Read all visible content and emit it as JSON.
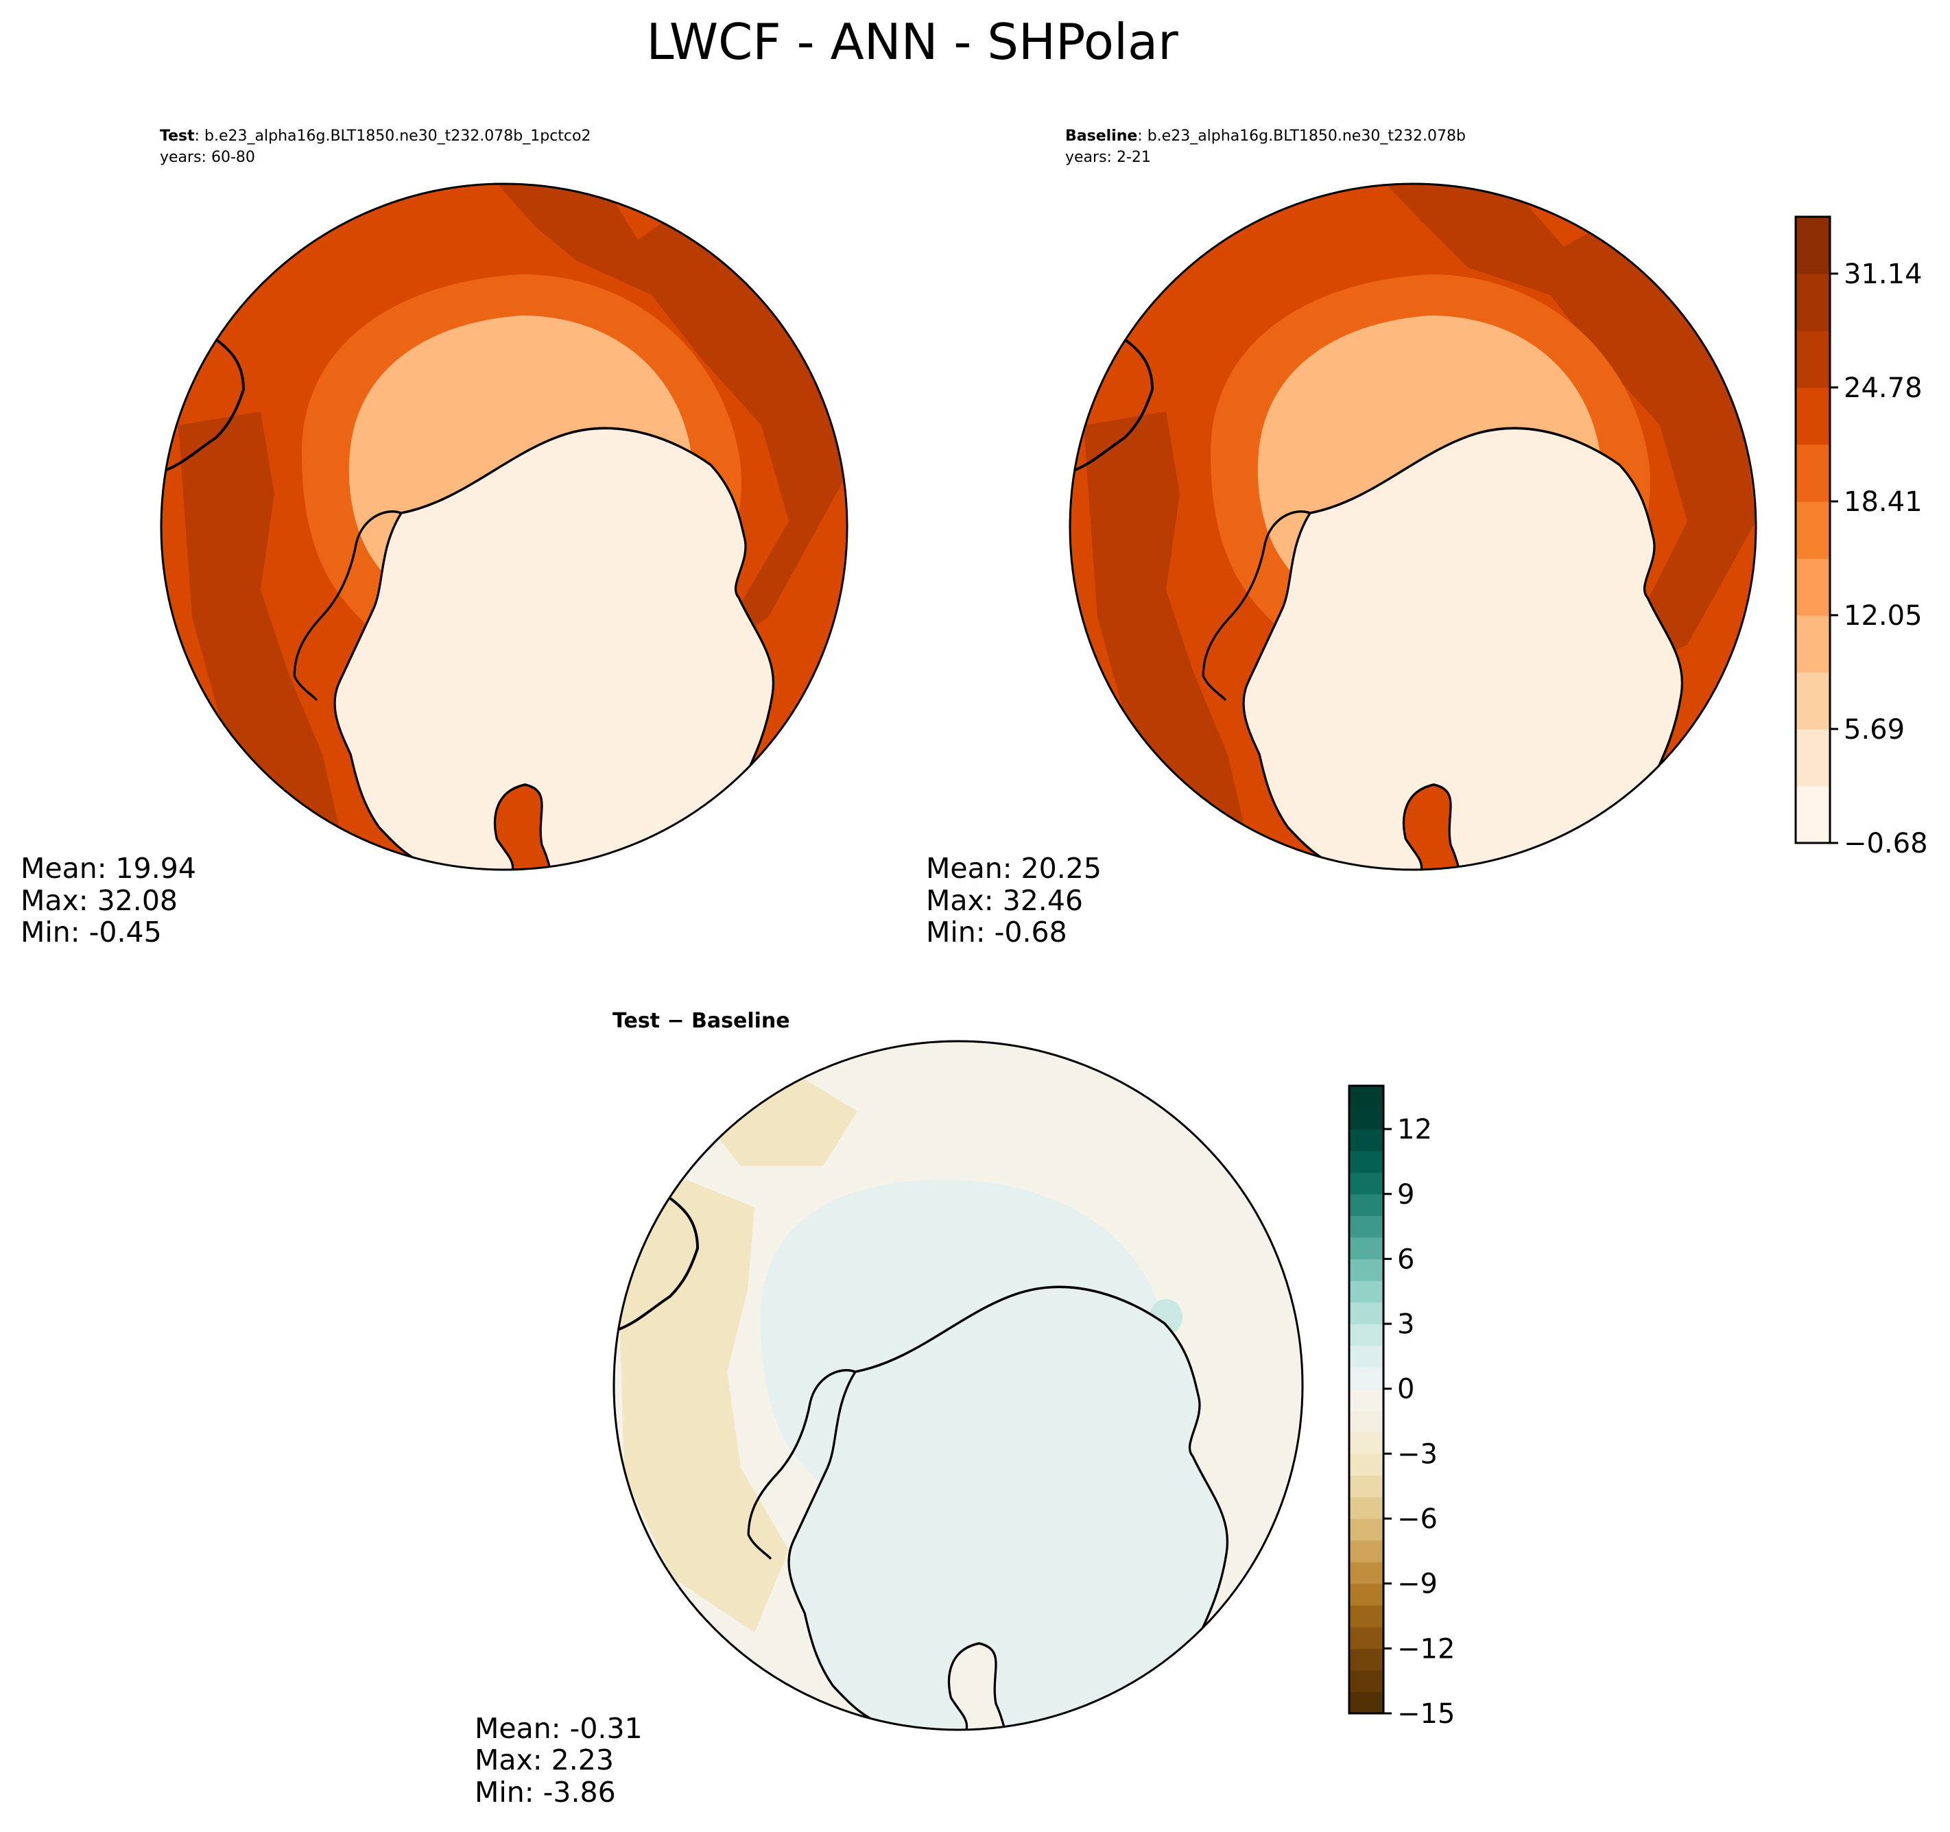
{
  "chart_data": {
    "type": "polar-contour-map",
    "title": "LWCF - ANN - SHPolar",
    "panels": [
      {
        "id": "test",
        "label": "Test",
        "case": ": b.e23_alpha16g.BLT1850.ne30_t232.078b_1pctco2",
        "years": "years: 60-80",
        "stats": {
          "mean": "Mean: 19.94",
          "max": "Max: 32.08",
          "min": "Min: -0.45"
        }
      },
      {
        "id": "baseline",
        "label": "Baseline",
        "case": ": b.e23_alpha16g.BLT1850.ne30_t232.078b",
        "years": "years: 2-21",
        "stats": {
          "mean": "Mean: 20.25",
          "max": "Max: 32.46",
          "min": "Min: -0.68"
        }
      },
      {
        "id": "diff",
        "label": "Test − Baseline",
        "stats": {
          "mean": "Mean: -0.31",
          "max": "Max:  2.23",
          "min": "Min: -3.86"
        }
      }
    ],
    "colorbar_main": {
      "colormap": "Oranges",
      "range": [
        -0.68,
        34.32
      ],
      "levels": [
        -0.68,
        2.5,
        5.69,
        8.87,
        12.05,
        15.23,
        18.41,
        21.6,
        24.78,
        27.96,
        31.14,
        34.32
      ],
      "tick_values": [
        -0.68,
        5.69,
        12.05,
        18.41,
        24.78,
        31.14
      ],
      "tick_labels": [
        "−0.68",
        "5.69",
        "12.05",
        "18.41",
        "24.78",
        "31.14"
      ],
      "colors": [
        "#fff5eb",
        "#fee6ce",
        "#fdd0a2",
        "#fdb97e",
        "#fd9c55",
        "#f8812c",
        "#ec6514",
        "#d94801",
        "#b93d03",
        "#a53603",
        "#8c2d04"
      ]
    },
    "colorbar_diff": {
      "colormap": "BrBG",
      "range": [
        -15,
        14
      ],
      "levels": [
        -15,
        -14,
        -13,
        -12,
        -11,
        -10,
        -9,
        -8,
        -7,
        -6,
        -5,
        -4,
        -3,
        -2,
        -1,
        0,
        1,
        2,
        3,
        4,
        5,
        6,
        7,
        8,
        9,
        10,
        11,
        12,
        13,
        14
      ],
      "tick_values": [
        -15,
        -12,
        -9,
        -6,
        -3,
        0,
        3,
        6,
        9,
        12
      ],
      "tick_labels": [
        "−15",
        "−12",
        "−9",
        "−6",
        "−3",
        "0",
        "3",
        "6",
        "9",
        "12"
      ],
      "colors": [
        "#543005",
        "#643a07",
        "#74450a",
        "#8a5510",
        "#9c6618",
        "#b07a26",
        "#c18e3d",
        "#cda45a",
        "#d8b874",
        "#e2c98e",
        "#ebd9a9",
        "#f1e5c2",
        "#f4ebd3",
        "#f5efe1",
        "#f5f2ea",
        "#ebf3f2",
        "#dcefec",
        "#c9e8e2",
        "#b0ded6",
        "#94d2c8",
        "#76c1b4",
        "#59ad9f",
        "#3e998a",
        "#258576",
        "#107263",
        "#046052",
        "#014f42",
        "#003f33",
        "#003c30"
      ]
    },
    "colors": {
      "test_main": "#d94801",
      "test_ring_outer": "#b93d03",
      "test_ring_mid": "#ec6514",
      "test_ring_inner": "#fdb97e",
      "antarctica": "#fef0e0",
      "diff_ocean": "#f5f2ea",
      "diff_negative": "#f1e5c2",
      "diff_positive": "#e6f1ef",
      "diff_positive_strong": "#c9e8e2"
    }
  }
}
